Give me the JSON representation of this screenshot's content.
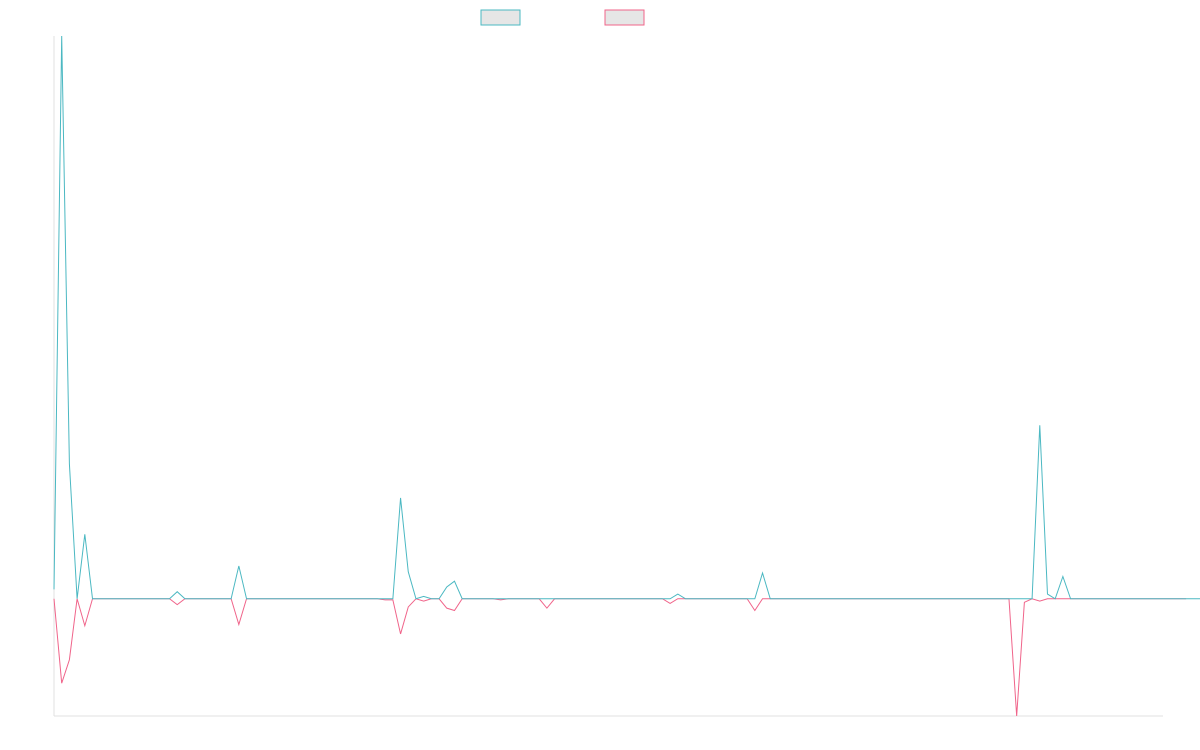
{
  "chart_data": {
    "type": "line",
    "title": "",
    "xlabel": "",
    "ylabel": "",
    "grid": false,
    "legend_position": "top-center",
    "x_count": 145,
    "ylim": [
      -1.0,
      4.8
    ],
    "colors": {
      "series_a": "#4bb8c2",
      "series_b": "#f0648a",
      "legend_fill": "#e6e6e6",
      "axis": "#e0e0e0"
    },
    "series": [
      {
        "values": [
          0.08,
          4.8,
          1.15,
          0,
          0.55,
          0,
          0,
          0,
          0,
          0,
          0,
          0,
          0,
          0,
          0,
          0,
          0.06,
          0,
          0,
          0,
          0,
          0,
          0,
          0,
          0.28,
          0,
          0,
          0,
          0,
          0,
          0,
          0,
          0,
          0,
          0,
          0,
          0,
          0,
          0,
          0,
          0,
          0,
          0,
          0,
          0,
          0.86,
          0.23,
          0,
          0.02,
          0,
          0,
          0.1,
          0.15,
          0,
          0,
          0,
          0,
          0,
          0,
          0,
          0,
          0,
          0,
          0,
          0,
          0,
          0,
          0,
          0,
          0,
          0,
          0,
          0,
          0,
          0,
          0,
          0,
          0,
          0,
          0,
          0,
          0.04,
          0,
          0,
          0,
          0,
          0,
          0,
          0,
          0,
          0,
          0,
          0.22,
          0,
          0,
          0,
          0,
          0,
          0,
          0,
          0,
          0,
          0,
          0,
          0,
          0,
          0,
          0,
          0,
          0,
          0,
          0,
          0,
          0,
          0,
          0,
          0,
          0,
          0,
          0,
          0,
          0,
          0,
          0,
          0,
          0,
          0,
          0,
          1.48,
          0.04,
          0,
          0.19,
          0,
          0,
          0,
          0,
          0,
          0,
          0,
          0,
          0,
          0,
          0,
          0,
          0,
          0,
          0,
          0,
          0,
          0,
          0
        ]
      },
      {
        "values": [
          0,
          -0.72,
          -0.52,
          0,
          -0.23,
          0,
          0,
          0,
          0,
          0,
          0,
          0,
          0,
          0,
          0,
          0,
          -0.05,
          0,
          0,
          0,
          0,
          0,
          0,
          0,
          -0.22,
          0,
          0,
          0,
          0,
          0,
          0,
          0,
          0,
          0,
          0,
          0,
          0,
          0,
          0,
          0,
          0,
          0,
          0,
          -0.01,
          -0.01,
          -0.3,
          -0.07,
          0,
          -0.02,
          0,
          0,
          -0.08,
          -0.1,
          0,
          0,
          0,
          0,
          0,
          -0.01,
          0,
          0,
          0,
          0,
          0,
          -0.08,
          0,
          0,
          0,
          0,
          0,
          0,
          0,
          0,
          0,
          0,
          0,
          0,
          0,
          0,
          0,
          -0.04,
          0,
          0,
          0,
          0,
          0,
          0,
          0,
          0,
          0,
          0,
          -0.1,
          0,
          0,
          0,
          0,
          0,
          0,
          0,
          0,
          0,
          0,
          0,
          0,
          0,
          0,
          0,
          0,
          0,
          0,
          0,
          0,
          0,
          0,
          0,
          0,
          0,
          0,
          0,
          0,
          0,
          0,
          0,
          0,
          0,
          -1.0,
          -0.03,
          0,
          -0.02,
          0,
          0,
          0,
          0,
          0,
          0,
          0,
          0,
          0,
          0,
          0,
          0,
          0,
          0,
          0,
          0,
          0,
          0,
          0
        ]
      }
    ]
  }
}
